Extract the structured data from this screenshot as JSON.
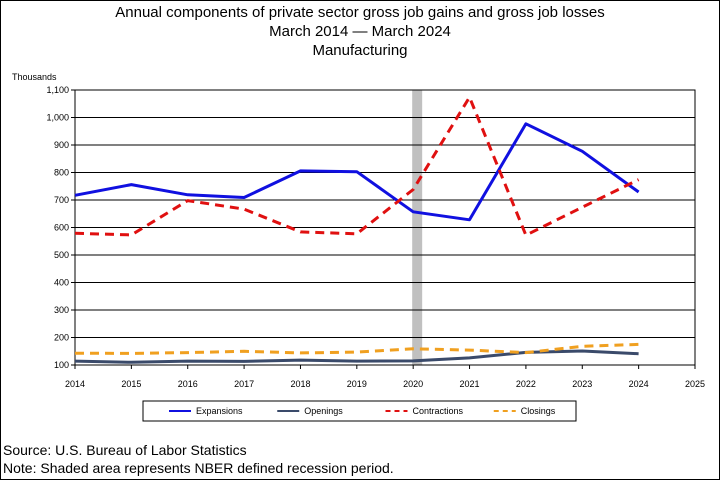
{
  "chart_data": {
    "type": "line",
    "title": "Annual components of private sector gross job gains and gross job losses",
    "subtitle_start": "March 2014",
    "subtitle_end": "March 2024",
    "subtitle_dash": "—",
    "subtitle2": "Manufacturing",
    "ylabel": "Thousands",
    "ylim": [
      100,
      1100
    ],
    "yticks": [
      100,
      200,
      300,
      400,
      500,
      600,
      700,
      800,
      900,
      1000,
      1100
    ],
    "ytick_labels": [
      "100",
      "200",
      "300",
      "400",
      "500",
      "600",
      "700",
      "800",
      "900",
      "1,000",
      "1,100"
    ],
    "xlim": [
      2014,
      2025
    ],
    "xticks": [
      2014,
      2015,
      2016,
      2017,
      2018,
      2019,
      2020,
      2021,
      2022,
      2023,
      2024,
      2025
    ],
    "grid": true,
    "recession_year": 2020,
    "x": [
      2014,
      2015,
      2016,
      2017,
      2018,
      2019,
      2020,
      2021,
      2022,
      2023,
      2024
    ],
    "series": [
      {
        "name": "Expansions",
        "color": "#1010e0",
        "dash": "solid",
        "values": [
          717,
          756,
          719,
          709,
          806,
          803,
          657,
          628,
          977,
          877,
          729
        ]
      },
      {
        "name": "Openings",
        "color": "#3a4a6a",
        "dash": "solid",
        "values": [
          114,
          110,
          114,
          113,
          118,
          114,
          115,
          126,
          146,
          151,
          141
        ]
      },
      {
        "name": "Contractions",
        "color": "#e01010",
        "dash": "dashed",
        "values": [
          579,
          573,
          698,
          667,
          584,
          577,
          738,
          1074,
          572,
          674,
          774
        ]
      },
      {
        "name": "Closings",
        "color": "#f0a020",
        "dash": "dashed",
        "values": [
          143,
          142,
          145,
          150,
          144,
          147,
          159,
          154,
          145,
          168,
          175
        ]
      }
    ]
  },
  "footer": {
    "source": "Source: U.S. Bureau of Labor Statistics",
    "note": "Note: Shaded area represents NBER defined recession period."
  }
}
